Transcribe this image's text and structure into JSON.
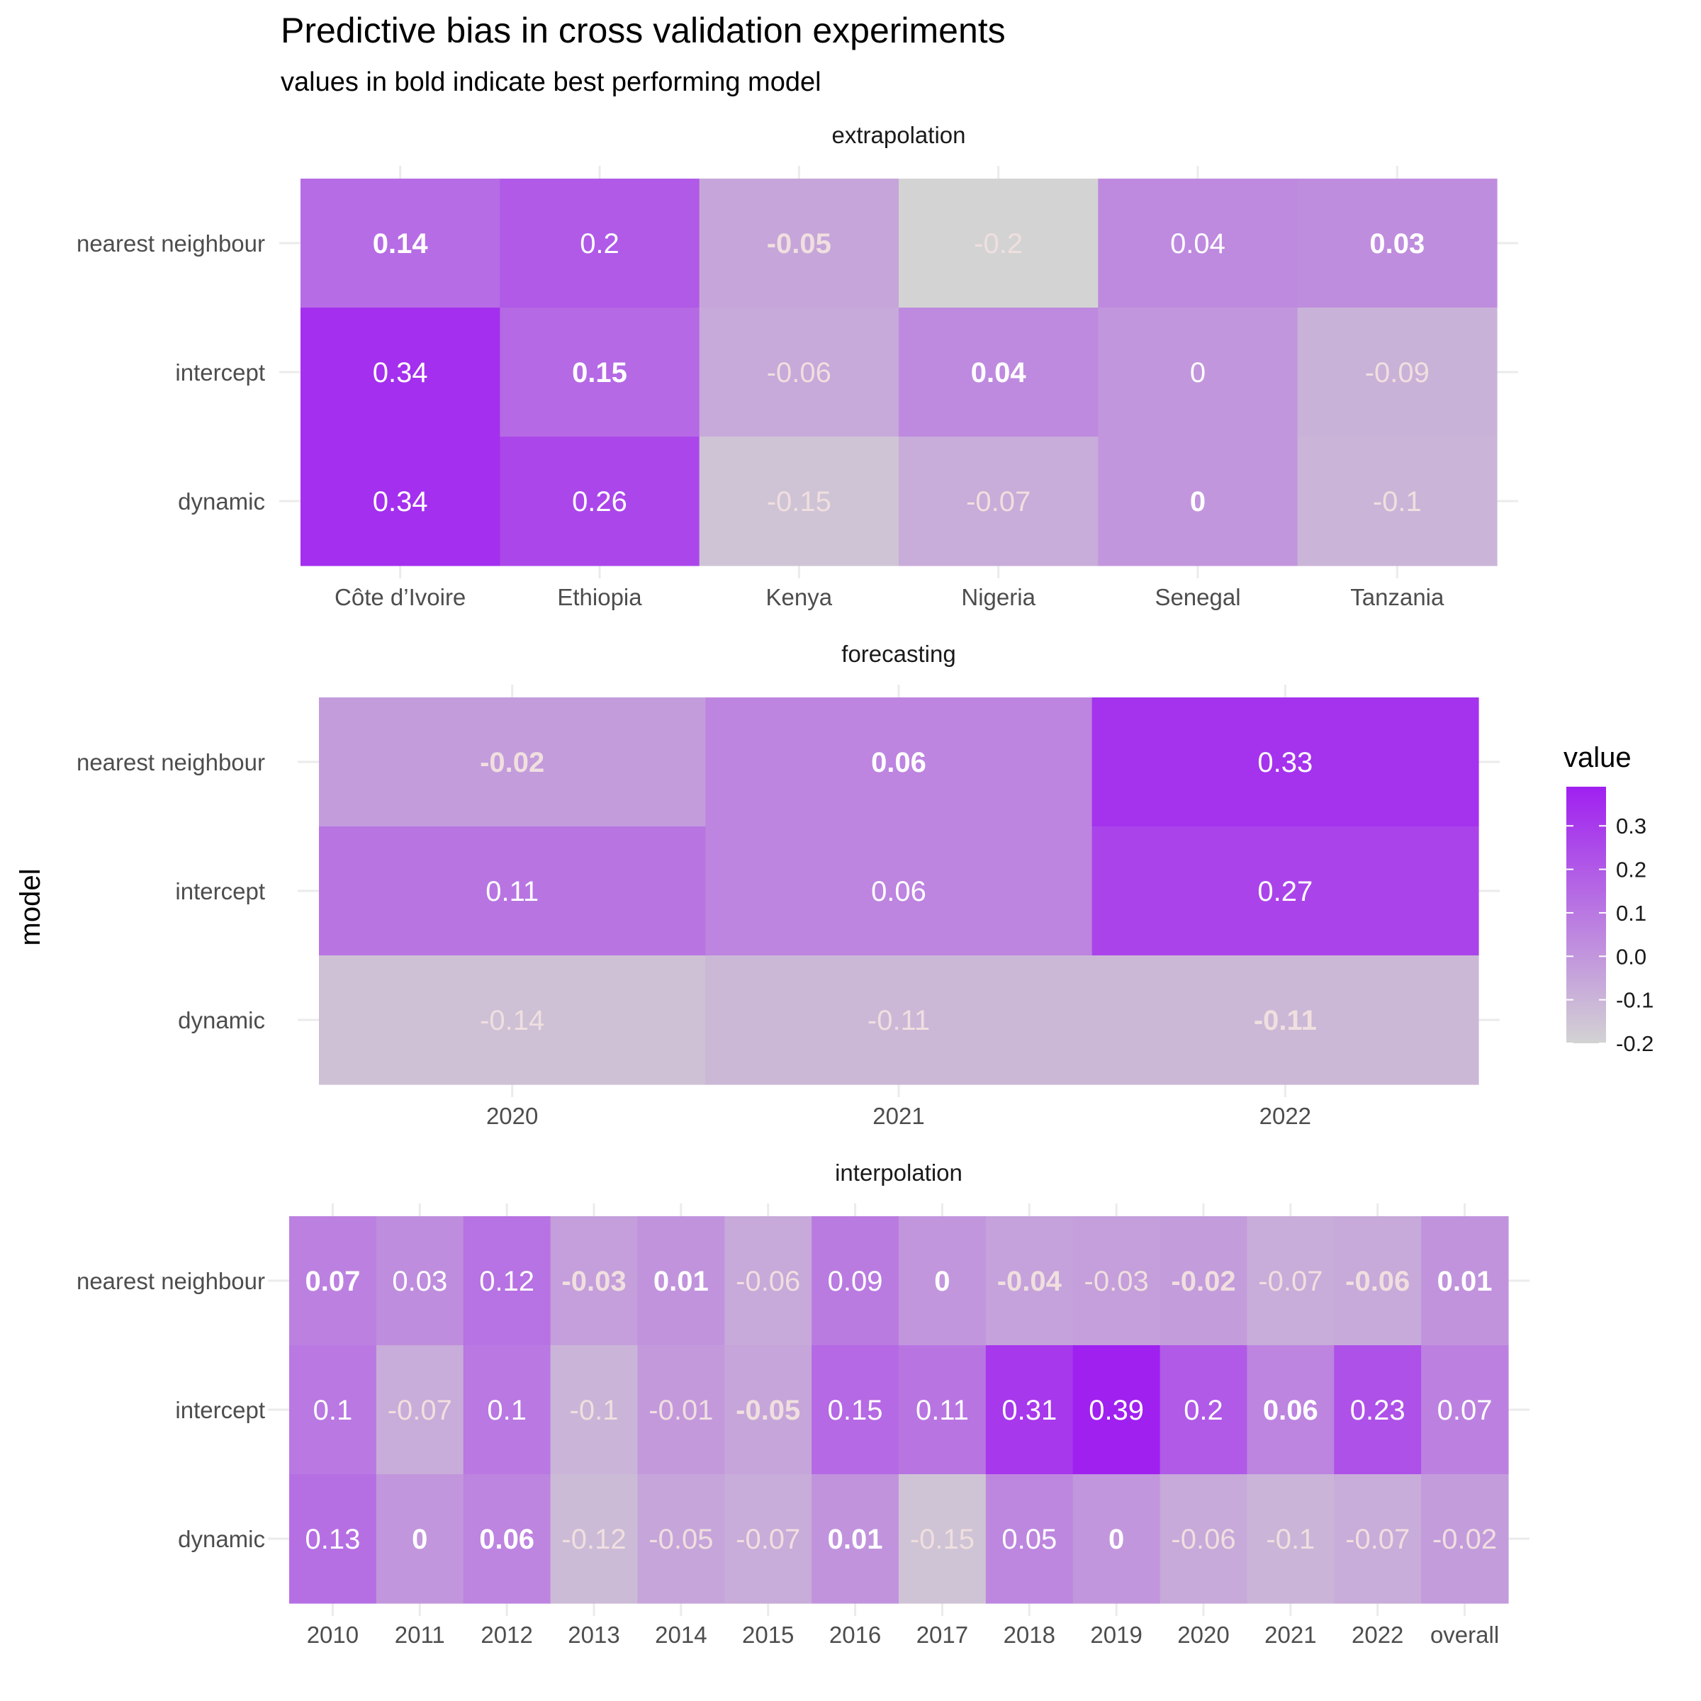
{
  "title": "Predictive bias in cross validation experiments",
  "subtitle": "values in bold indicate best performing model",
  "ylabel": "model",
  "legend": {
    "title": "value",
    "ticks": [
      0.3,
      0.2,
      0.1,
      0.0,
      -0.1,
      -0.2
    ],
    "tick_labels": [
      "0.3",
      "0.2",
      "0.1",
      "0.0",
      "-0.1",
      "-0.2"
    ],
    "min": -0.2,
    "max": 0.39
  },
  "colors": {
    "low": "#d3d3d3",
    "high": "#a020f0",
    "gridline": "#ebebeb",
    "label_bright": "#ffffff",
    "label_dim": "#f0dfdf"
  },
  "chart_data": [
    {
      "type": "heatmap",
      "panel": "extrapolation",
      "rows": [
        "nearest neighbour",
        "intercept",
        "dynamic"
      ],
      "columns": [
        "Côte d’Ivoire",
        "Ethiopia",
        "Kenya",
        "Nigeria",
        "Senegal",
        "Tanzania"
      ],
      "values": [
        [
          0.14,
          0.2,
          -0.05,
          -0.2,
          0.04,
          0.03
        ],
        [
          0.34,
          0.15,
          -0.06,
          0.04,
          0,
          -0.09
        ],
        [
          0.34,
          0.26,
          -0.15,
          -0.07,
          0,
          -0.1
        ]
      ],
      "labels": [
        [
          "0.14",
          "0.2",
          "-0.05",
          "-0.2",
          "0.04",
          "0.03"
        ],
        [
          "0.34",
          "0.15",
          "-0.06",
          "0.04",
          "0",
          "-0.09"
        ],
        [
          "0.34",
          "0.26",
          "-0.15",
          "-0.07",
          "0",
          "-0.1"
        ]
      ],
      "bold": [
        [
          true,
          false,
          true,
          false,
          false,
          true
        ],
        [
          false,
          true,
          false,
          true,
          false,
          false
        ],
        [
          false,
          false,
          false,
          false,
          true,
          false
        ]
      ]
    },
    {
      "type": "heatmap",
      "panel": "forecasting",
      "rows": [
        "nearest neighbour",
        "intercept",
        "dynamic"
      ],
      "columns": [
        "2020",
        "2021",
        "2022"
      ],
      "values": [
        [
          -0.02,
          0.06,
          0.33
        ],
        [
          0.11,
          0.06,
          0.27
        ],
        [
          -0.14,
          -0.11,
          -0.11
        ]
      ],
      "labels": [
        [
          "-0.02",
          "0.06",
          "0.33"
        ],
        [
          "0.11",
          "0.06",
          "0.27"
        ],
        [
          "-0.14",
          "-0.11",
          "-0.11"
        ]
      ],
      "bold": [
        [
          true,
          true,
          false
        ],
        [
          false,
          false,
          false
        ],
        [
          false,
          false,
          true
        ]
      ]
    },
    {
      "type": "heatmap",
      "panel": "interpolation",
      "rows": [
        "nearest neighbour",
        "intercept",
        "dynamic"
      ],
      "columns": [
        "2010",
        "2011",
        "2012",
        "2013",
        "2014",
        "2015",
        "2016",
        "2017",
        "2018",
        "2019",
        "2020",
        "2021",
        "2022",
        "overall"
      ],
      "values": [
        [
          0.07,
          0.03,
          0.12,
          -0.03,
          0.01,
          -0.06,
          0.09,
          0,
          -0.04,
          -0.03,
          -0.02,
          -0.07,
          -0.06,
          0.01
        ],
        [
          0.1,
          -0.07,
          0.1,
          -0.1,
          -0.01,
          -0.05,
          0.15,
          0.11,
          0.31,
          0.39,
          0.2,
          0.06,
          0.23,
          0.07
        ],
        [
          0.13,
          0,
          0.06,
          -0.12,
          -0.05,
          -0.07,
          0.01,
          -0.15,
          0.05,
          0,
          -0.06,
          -0.1,
          -0.07,
          -0.02
        ]
      ],
      "labels": [
        [
          "0.07",
          "0.03",
          "0.12",
          "-0.03",
          "0.01",
          "-0.06",
          "0.09",
          "0",
          "-0.04",
          "-0.03",
          "-0.02",
          "-0.07",
          "-0.06",
          "0.01"
        ],
        [
          "0.1",
          "-0.07",
          "0.1",
          "-0.1",
          "-0.01",
          "-0.05",
          "0.15",
          "0.11",
          "0.31",
          "0.39",
          "0.2",
          "0.06",
          "0.23",
          "0.07"
        ],
        [
          "0.13",
          "0",
          "0.06",
          "-0.12",
          "-0.05",
          "-0.07",
          "0.01",
          "-0.15",
          "0.05",
          "0",
          "-0.06",
          "-0.1",
          "-0.07",
          "-0.02"
        ]
      ],
      "bold": [
        [
          true,
          false,
          false,
          true,
          true,
          false,
          false,
          true,
          true,
          false,
          true,
          false,
          true,
          true
        ],
        [
          false,
          false,
          false,
          false,
          false,
          true,
          false,
          false,
          false,
          false,
          false,
          true,
          false,
          false
        ],
        [
          false,
          true,
          true,
          false,
          false,
          false,
          true,
          false,
          false,
          true,
          false,
          false,
          false,
          false
        ]
      ]
    }
  ]
}
